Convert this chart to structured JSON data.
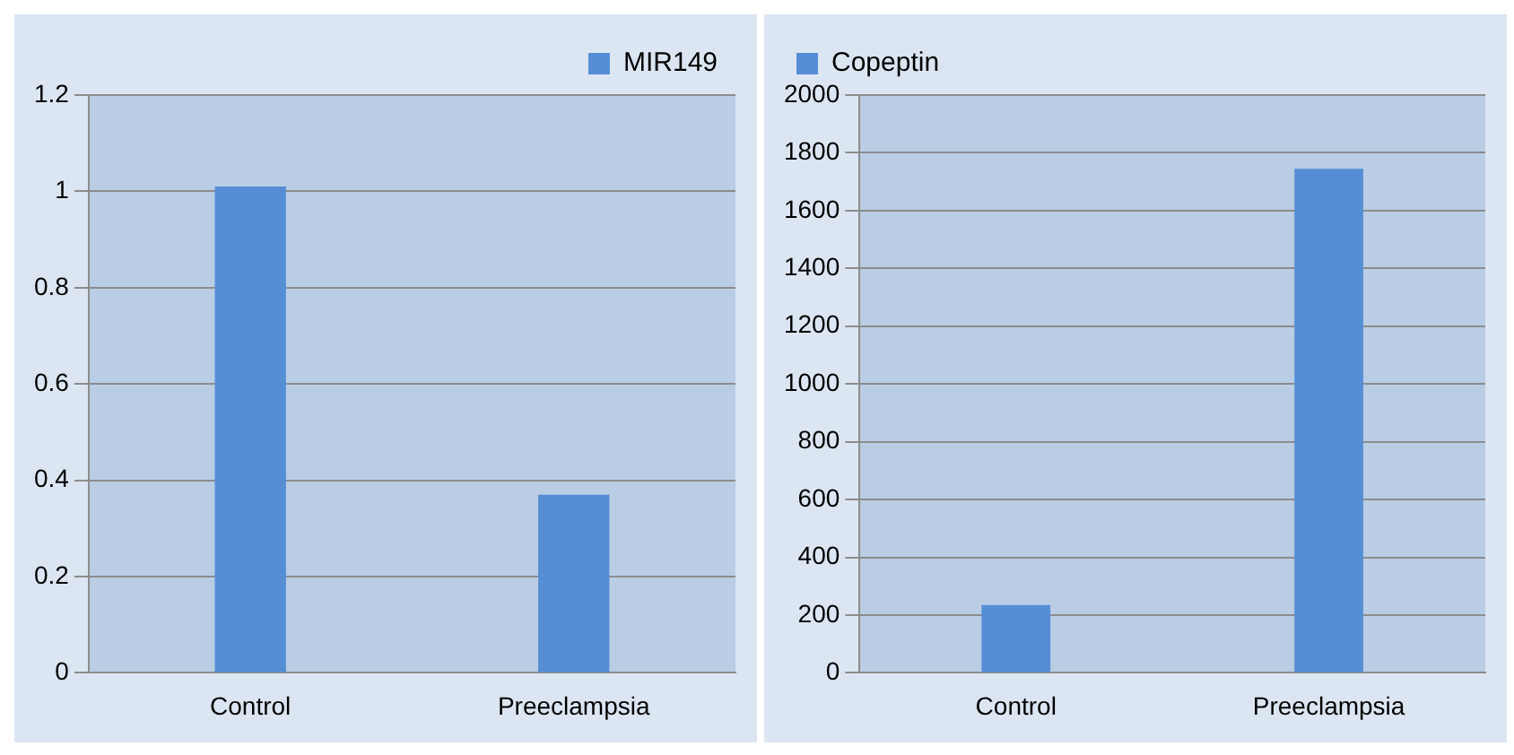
{
  "chart_data": [
    {
      "type": "bar",
      "categories": [
        "Control",
        "Preeclampsia"
      ],
      "series": [
        {
          "name": "MIR149",
          "color": "#558ed5",
          "values": [
            1.01,
            0.37
          ]
        }
      ],
      "ylim": [
        0,
        1.2
      ],
      "yticks": [
        0,
        0.2,
        0.4,
        0.6,
        0.8,
        1,
        1.2
      ],
      "grid": "y",
      "legend": "top right"
    },
    {
      "type": "bar",
      "categories": [
        "Control",
        "Preeclampsia"
      ],
      "series": [
        {
          "name": "Copeptin",
          "color": "#558ed5",
          "values": [
            235,
            1745
          ]
        }
      ],
      "ylim": [
        0,
        2000
      ],
      "yticks": [
        0,
        200,
        400,
        600,
        800,
        1000,
        1200,
        1400,
        1600,
        1800,
        2000
      ],
      "grid": "y",
      "legend": "top left"
    }
  ]
}
